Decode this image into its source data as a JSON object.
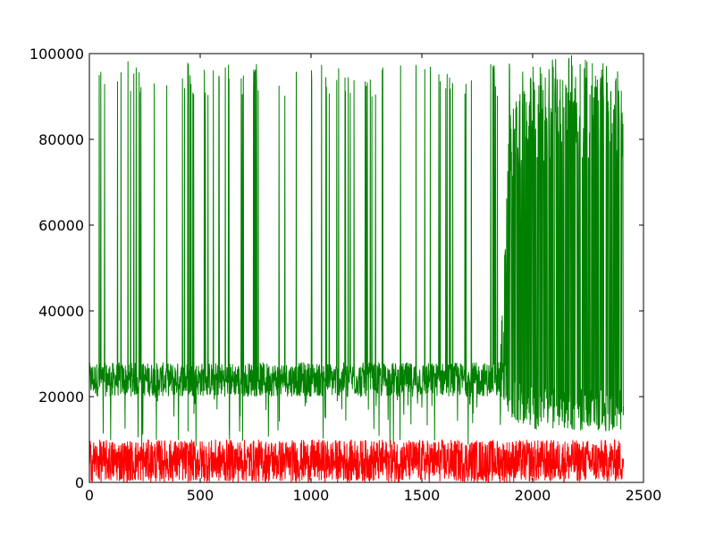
{
  "chart_data": {
    "type": "line",
    "title": "",
    "xlabel": "",
    "ylabel": "",
    "xlim": [
      0,
      2500
    ],
    "ylim": [
      0,
      100000
    ],
    "xticks": [
      0,
      500,
      1000,
      1500,
      2000,
      2500
    ],
    "yticks": [
      0,
      20000,
      40000,
      60000,
      80000,
      100000
    ],
    "grid": false,
    "x_max": 2410,
    "series": [
      {
        "color": "#008000",
        "description": "dense spiky series; baseline ~20000-28000 with frequent spikes to ~95000; after x~1850 oscillates densely between ~12000 and ~95000",
        "envelope": {
          "x": [
            0,
            100,
            200,
            300,
            400,
            500,
            600,
            700,
            800,
            900,
            1000,
            1100,
            1200,
            1300,
            1400,
            1500,
            1600,
            1700,
            1800,
            1850,
            1900,
            2000,
            2100,
            2200,
            2300,
            2410
          ],
          "base_low": [
            20000,
            20000,
            20000,
            20000,
            20000,
            20000,
            20000,
            20000,
            20000,
            20000,
            20000,
            20000,
            20000,
            20000,
            20000,
            20000,
            20000,
            20000,
            20000,
            20000,
            15000,
            12000,
            12000,
            12000,
            12000,
            12000
          ],
          "base_high": [
            28000,
            28000,
            28000,
            28000,
            28000,
            28000,
            28000,
            28000,
            28000,
            28000,
            28000,
            28000,
            28000,
            28000,
            28000,
            28000,
            28000,
            28000,
            28000,
            28000,
            90000,
            95000,
            95000,
            95000,
            95000,
            95000
          ],
          "peak": [
            99000,
            99000,
            98000,
            98000,
            99000,
            98000,
            98000,
            98000,
            98000,
            98000,
            97000,
            98000,
            96000,
            98000,
            100000,
            98000,
            97000,
            97000,
            98000,
            99000,
            99000,
            99000,
            99000,
            100000,
            98000,
            97000
          ]
        }
      },
      {
        "color": "#ff0000",
        "description": "dense noisy series oscillating between ~0 and ~10000 across the full x range",
        "envelope": {
          "x": [
            0,
            500,
            1000,
            1500,
            2000,
            2410
          ],
          "low": [
            0,
            0,
            0,
            0,
            0,
            0
          ],
          "high": [
            10000,
            10000,
            10000,
            10000,
            10000,
            10000
          ]
        }
      }
    ]
  }
}
